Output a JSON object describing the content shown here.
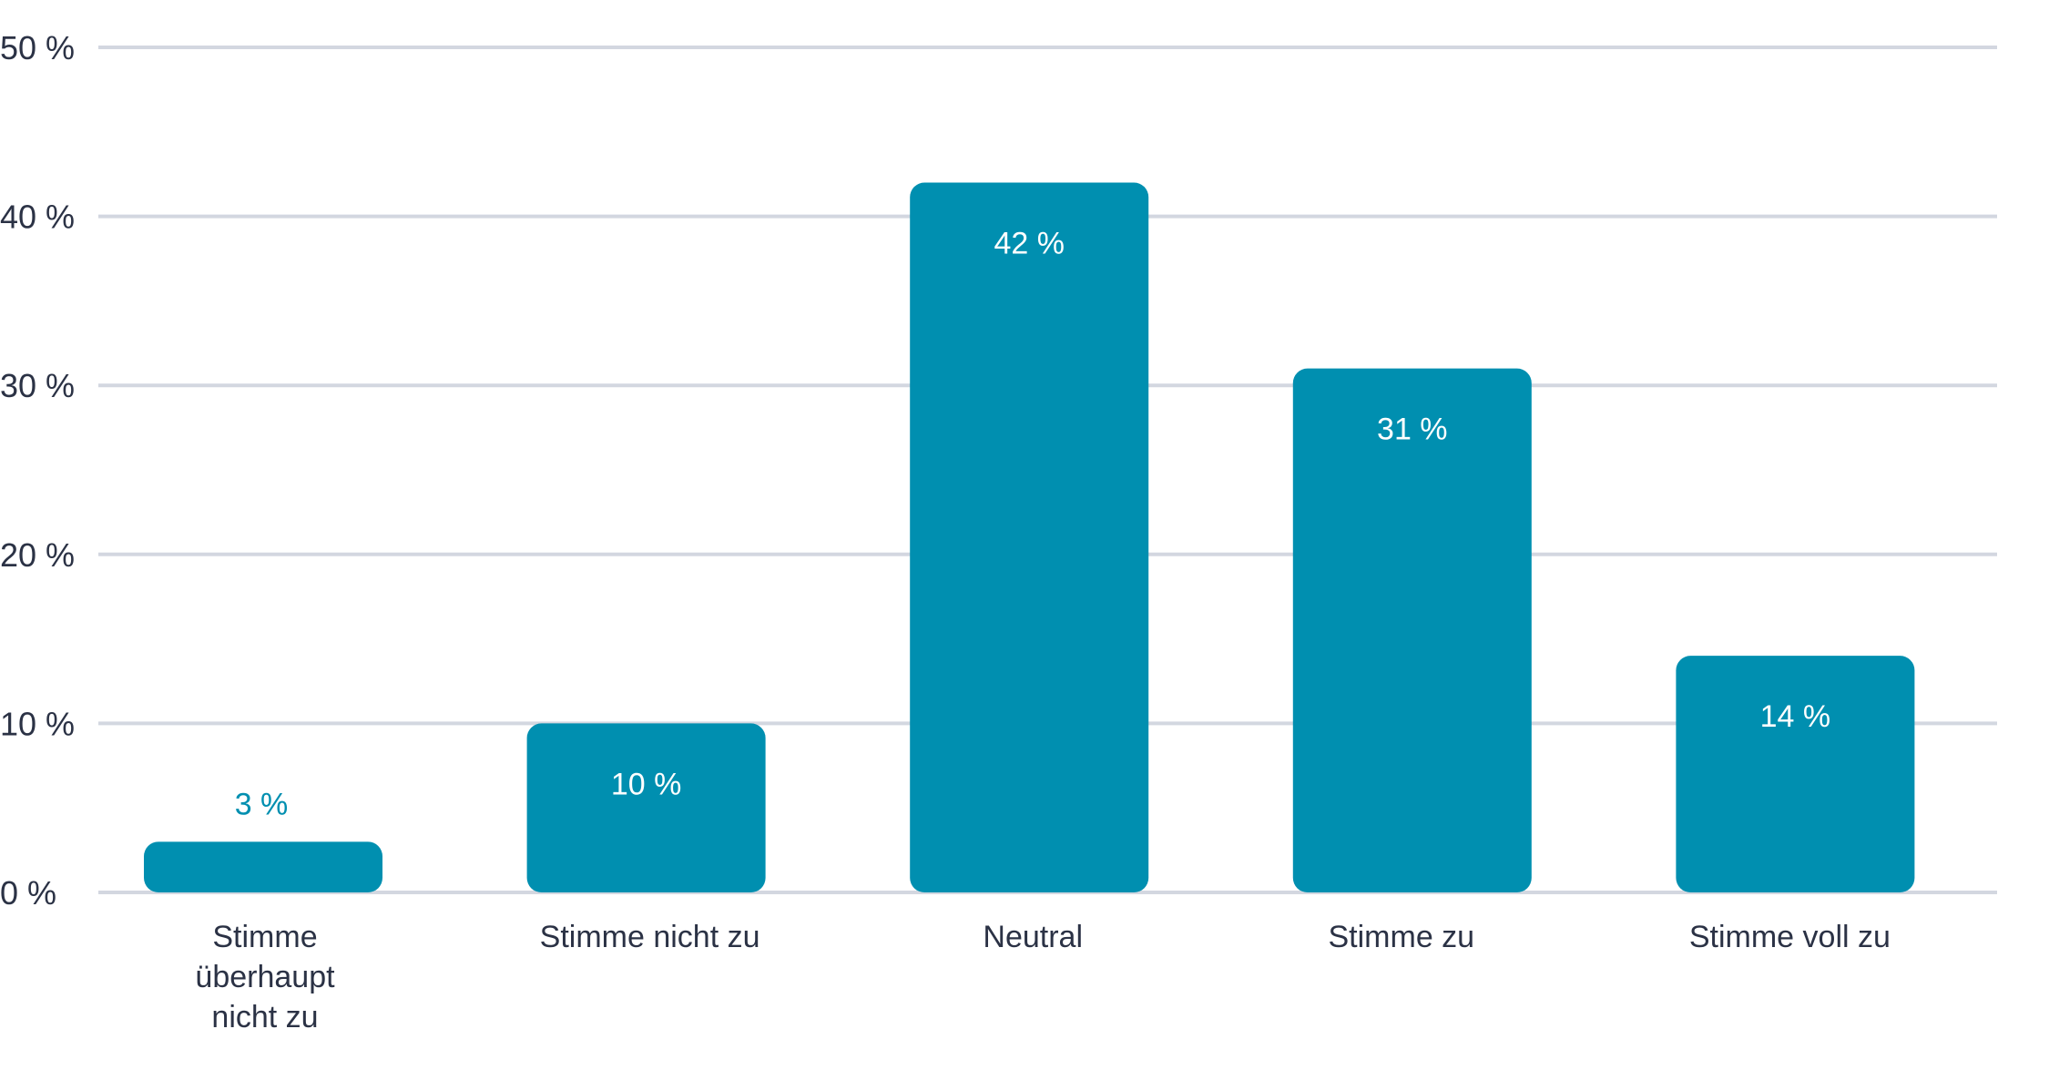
{
  "chart_data": {
    "type": "bar",
    "categories": [
      [
        "Stimme",
        "überhaupt",
        "nicht zu"
      ],
      [
        "Stimme nicht zu"
      ],
      [
        "Neutral"
      ],
      [
        "Stimme zu"
      ],
      [
        "Stimme voll zu"
      ]
    ],
    "values": [
      3,
      10,
      42,
      31,
      14
    ],
    "value_labels": [
      "3 %",
      "10 %",
      "42 %",
      "31 %",
      "14 %"
    ],
    "y_ticks": [
      0,
      10,
      20,
      30,
      40,
      50
    ],
    "y_tick_labels": [
      "0 %",
      "10 %",
      "20 %",
      "30 %",
      "40 %",
      "50 %"
    ],
    "ylim": [
      0,
      50
    ],
    "grid": true,
    "legend": "none",
    "title": "",
    "xlabel": "",
    "ylabel": "",
    "colors": {
      "bar": "#008fb0",
      "grid": "#d3d7e0",
      "text": "#2b3245",
      "label_inside": "#ffffff",
      "label_outside": "#008fb0"
    }
  }
}
